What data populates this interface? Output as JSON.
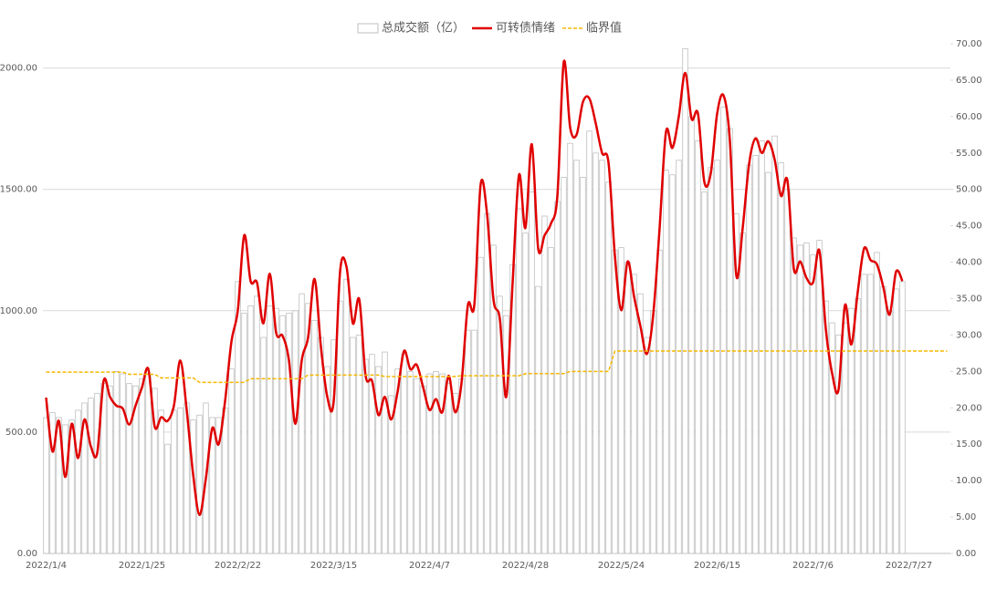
{
  "chart_data": {
    "type": "bar",
    "categories": [
      "2022/1/4",
      null,
      null,
      null,
      null,
      null,
      null,
      null,
      null,
      null,
      null,
      null,
      null,
      null,
      null,
      "2022/1/25",
      null,
      null,
      null,
      null,
      null,
      null,
      null,
      null,
      null,
      null,
      null,
      null,
      null,
      null,
      "2022/2/22",
      null,
      null,
      null,
      null,
      null,
      null,
      null,
      null,
      null,
      null,
      null,
      null,
      null,
      null,
      "2022/3/15",
      null,
      null,
      null,
      null,
      null,
      null,
      null,
      null,
      null,
      null,
      null,
      null,
      null,
      null,
      "2022/4/7",
      null,
      null,
      null,
      null,
      null,
      null,
      null,
      null,
      null,
      null,
      null,
      null,
      null,
      null,
      "2022/4/28",
      null,
      null,
      null,
      null,
      null,
      null,
      null,
      null,
      null,
      null,
      null,
      null,
      null,
      null,
      "2022/5/24",
      null,
      null,
      null,
      null,
      null,
      null,
      null,
      null,
      null,
      null,
      null,
      null,
      null,
      null,
      "2022/6/15",
      null,
      null,
      null,
      null,
      null,
      null,
      null,
      null,
      null,
      null,
      null,
      null,
      null,
      null,
      "2022/7/6",
      null,
      null,
      null,
      null,
      null,
      null,
      null,
      null,
      null,
      null,
      null,
      null,
      null,
      null,
      "2022/7/27",
      null,
      null,
      null,
      null,
      null,
      null
    ],
    "series": [
      {
        "name": "总成交额（亿）",
        "type": "bar",
        "color": "#bfbfbf",
        "values": [
          560,
          580,
          560,
          530,
          550,
          590,
          620,
          640,
          660,
          700,
          690,
          750,
          740,
          700,
          690,
          720,
          740,
          680,
          590,
          450,
          590,
          600,
          620,
          550,
          570,
          620,
          560,
          560,
          600,
          760,
          1120,
          990,
          1020,
          1060,
          890,
          1020,
          1010,
          980,
          990,
          1000,
          1070,
          1030,
          960,
          890,
          770,
          880,
          1040,
          1130,
          890,
          900,
          800,
          820,
          770,
          830,
          650,
          760,
          820,
          750,
          720,
          690,
          740,
          750,
          740,
          700,
          660,
          720,
          920,
          920,
          1220,
          1400,
          1270,
          1060,
          980,
          1190,
          1420,
          1320,
          1490,
          1100,
          1390,
          1260,
          1450,
          1550,
          1690,
          1620,
          1550,
          1740,
          1650,
          1620,
          1530,
          1250,
          1260,
          1200,
          1150,
          1070,
          890,
          1000,
          1250,
          1580,
          1560,
          1620,
          2080,
          1800,
          1700,
          1490,
          1590,
          1620,
          1840,
          1750,
          1400,
          1320,
          1600,
          1640,
          1700,
          1570,
          1720,
          1610,
          1500,
          1300,
          1270,
          1280,
          1230,
          1290,
          1040,
          950,
          900,
          950,
          1010,
          1050,
          1150,
          1150,
          1240,
          1100,
          1000,
          1090,
          1120,
          null,
          null,
          null,
          null,
          null,
          null,
          null
        ]
      },
      {
        "name": "可转债情绪",
        "type": "line",
        "axis": "y2",
        "color": "#e00000",
        "values": [
          21.4,
          14,
          18.2,
          10.5,
          17.8,
          13.1,
          18.4,
          14.7,
          13.8,
          23.7,
          21.5,
          20.3,
          19.9,
          17.7,
          20.3,
          22.8,
          25.3,
          17.4,
          18.7,
          18.2,
          20.3,
          26.5,
          19.7,
          10.9,
          5.3,
          10.3,
          17.2,
          15,
          20.9,
          29.1,
          33.4,
          43.7,
          37.4,
          37.2,
          31.6,
          38.4,
          30.3,
          29.9,
          26.5,
          17.8,
          26.5,
          29.7,
          37.7,
          28.4,
          21.5,
          20.9,
          38.7,
          39.4,
          31.6,
          34.9,
          24.4,
          23.7,
          19,
          21.5,
          18.4,
          22.2,
          27.8,
          25.3,
          25.9,
          22.8,
          19.7,
          21.2,
          19.4,
          24.4,
          19.4,
          23.4,
          34.1,
          34.1,
          50.7,
          46.6,
          34.9,
          32.2,
          21.5,
          37.2,
          52,
          44.7,
          56.2,
          41.9,
          43.7,
          45.3,
          49.1,
          67.5,
          58.5,
          57.5,
          62,
          62.5,
          59.1,
          55,
          53.7,
          40.9,
          33.4,
          40.1,
          35.3,
          31.2,
          27.4,
          32.8,
          44.7,
          57.9,
          55.7,
          60,
          66,
          59.7,
          60.4,
          51,
          52.2,
          60.4,
          62.9,
          56.6,
          38.2,
          44.7,
          53.5,
          57,
          55,
          56.6,
          54.1,
          49.1,
          51.2,
          39.1,
          40.1,
          37.8,
          37.2,
          41.6,
          30.9,
          24.7,
          22.5,
          34.1,
          28.7,
          35.9,
          41.9,
          40.3,
          39.7,
          36.6,
          32.8,
          38.7,
          37.4,
          null,
          null,
          null,
          null,
          null,
          null,
          null
        ]
      },
      {
        "name": "临界值",
        "type": "line",
        "axis": "y2",
        "dashed": true,
        "color": "#f5b800",
        "values": [
          24.9,
          24.9,
          24.9,
          24.9,
          24.9,
          24.9,
          24.9,
          24.9,
          24.9,
          24.9,
          24.9,
          24.9,
          24.9,
          24.6,
          24.6,
          24.6,
          24.6,
          24.6,
          24.1,
          24.1,
          24.1,
          24.1,
          24.1,
          24.1,
          23.5,
          23.5,
          23.5,
          23.5,
          23.5,
          23.5,
          23.5,
          23.5,
          24.0,
          24.0,
          24.0,
          24.0,
          24.0,
          24.0,
          24.0,
          24.0,
          24.0,
          24.5,
          24.5,
          24.5,
          24.5,
          24.5,
          24.5,
          24.5,
          24.5,
          24.5,
          24.5,
          24.5,
          24.5,
          24.3,
          24.3,
          24.3,
          24.3,
          24.3,
          24.3,
          24.3,
          24.3,
          24.3,
          24.3,
          24.3,
          24.3,
          24.4,
          24.4,
          24.4,
          24.4,
          24.4,
          24.4,
          24.4,
          24.4,
          24.4,
          24.4,
          24.7,
          24.7,
          24.7,
          24.7,
          24.7,
          24.7,
          24.7,
          25.0,
          25.0,
          25.0,
          25.0,
          25.0,
          25.0,
          25.0,
          27.8,
          27.8,
          27.8,
          27.8,
          27.8,
          27.8,
          27.8,
          27.8,
          27.8,
          27.8,
          27.8,
          27.8,
          27.8,
          27.8,
          27.8,
          27.8,
          27.8,
          27.8,
          27.8,
          27.8,
          27.8,
          27.8,
          27.8,
          27.8,
          27.8,
          27.8,
          27.8,
          27.8,
          27.8,
          27.8,
          27.8,
          27.8,
          27.8,
          27.8,
          27.8,
          27.8,
          27.8,
          27.8,
          27.8,
          27.8,
          27.8,
          27.8,
          27.8,
          27.8,
          27.8,
          27.8,
          27.8,
          27.8,
          27.8,
          27.8,
          27.8,
          27.8,
          27.8
        ]
      }
    ],
    "ylim": [
      0,
      2100
    ],
    "yticks": [
      {
        "value": 0,
        "label": "0.00"
      },
      {
        "value": 500,
        "label": "500.00"
      },
      {
        "value": 1000,
        "label": "1000.00"
      },
      {
        "value": 1500,
        "label": "1500.00"
      },
      {
        "value": 2000,
        "label": "2000.00"
      }
    ],
    "y2lim": [
      0,
      70
    ],
    "y2ticks": [
      {
        "value": 0,
        "label": "0.00"
      },
      {
        "value": 5,
        "label": "5.00"
      },
      {
        "value": 10,
        "label": "10.00"
      },
      {
        "value": 15,
        "label": "15.00"
      },
      {
        "value": 20,
        "label": "20.00"
      },
      {
        "value": 25,
        "label": "25.00"
      },
      {
        "value": 30,
        "label": "30.00"
      },
      {
        "value": 35,
        "label": "35.00"
      },
      {
        "value": 40,
        "label": "40.00"
      },
      {
        "value": 45,
        "label": "45.00"
      },
      {
        "value": 50,
        "label": "50.00"
      },
      {
        "value": 55,
        "label": "55.00"
      },
      {
        "value": 60,
        "label": "60.00"
      },
      {
        "value": 65,
        "label": "65.00"
      },
      {
        "value": 70,
        "label": "70.00"
      }
    ],
    "grid": true,
    "legend": "top"
  }
}
